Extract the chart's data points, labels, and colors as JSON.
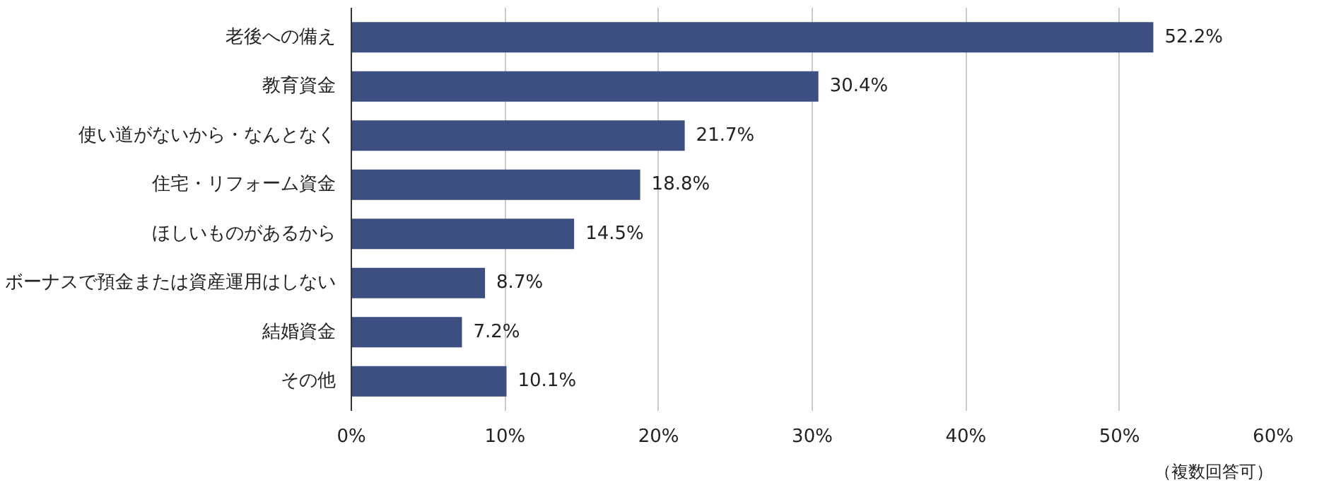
{
  "chart_data": {
    "type": "bar",
    "orientation": "horizontal",
    "categories": [
      "老後への備え",
      "教育資金",
      "使い道がないから・なんとなく",
      "住宅・リフォーム資金",
      "ほしいものがあるから",
      "ボーナスで預金または資産運用はしない",
      "結婚資金",
      "その他"
    ],
    "values": [
      52.2,
      30.4,
      21.7,
      18.8,
      14.5,
      8.7,
      7.2,
      10.1
    ],
    "value_labels": [
      "52.2%",
      "30.4%",
      "21.7%",
      "18.8%",
      "14.5%",
      "8.7%",
      "7.2%",
      "10.1%"
    ],
    "color": "#3d4f80",
    "xlim": [
      0,
      60
    ],
    "xticks": [
      {
        "value": 0,
        "label": "0%"
      },
      {
        "value": 10,
        "label": "10%"
      },
      {
        "value": 20,
        "label": "20%"
      },
      {
        "value": 30,
        "label": "30%"
      },
      {
        "value": 40,
        "label": "40%"
      },
      {
        "value": 50,
        "label": "50%"
      },
      {
        "value": 60,
        "label": "60%"
      }
    ],
    "grid": "x",
    "annotations": [
      "（複数回答可）"
    ]
  }
}
